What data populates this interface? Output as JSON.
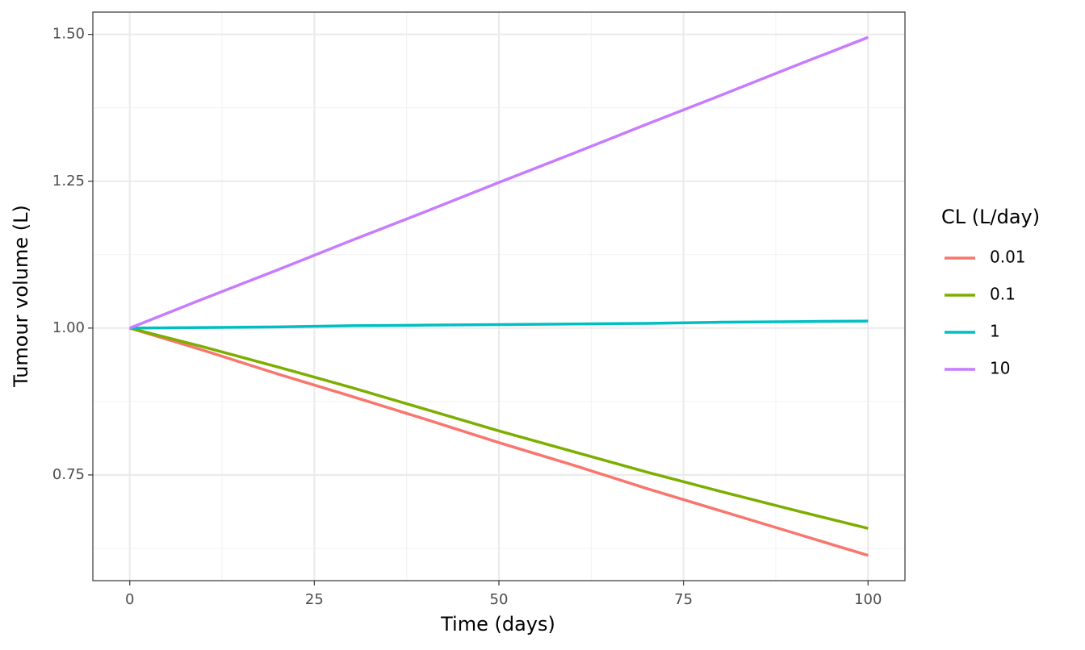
{
  "chart_data": {
    "type": "line",
    "x_label": "Time (days)",
    "y_label": "Tumour volume (L)",
    "legend_title": "CL (L/day)",
    "legend_position": "right",
    "grid": true,
    "x": [
      0,
      10,
      20,
      30,
      40,
      50,
      60,
      70,
      80,
      90,
      100
    ],
    "xlim": [
      -5,
      105
    ],
    "ylim": [
      0.57,
      1.538
    ],
    "xticks": [
      0,
      25,
      50,
      75,
      100
    ],
    "yticks": [
      0.75,
      {
        "value": 1,
        "label": "1.00"
      },
      1.25,
      {
        "value": 1.5,
        "label": "1.50"
      }
    ],
    "xminor": [
      12.5,
      37.5,
      62.5,
      87.5
    ],
    "yminor": [
      0.625,
      0.875,
      1.125,
      1.375
    ],
    "series": [
      {
        "name": "0.01",
        "color": "#F8766D",
        "values": [
          1.0,
          0.962,
          0.922,
          0.884,
          0.845,
          0.805,
          0.767,
          0.727,
          0.689,
          0.651,
          0.613
        ]
      },
      {
        "name": "0.1",
        "color": "#7CAE00",
        "values": [
          1.0,
          0.968,
          0.934,
          0.899,
          0.862,
          0.825,
          0.79,
          0.755,
          0.722,
          0.69,
          0.659
        ]
      },
      {
        "name": "1",
        "color": "#00BFC4",
        "values": [
          1.0,
          1.001,
          1.002,
          1.004,
          1.005,
          1.006,
          1.007,
          1.008,
          1.01,
          1.011,
          1.012
        ]
      },
      {
        "name": "10",
        "color": "#C77CFF",
        "values": [
          1.0,
          1.05,
          1.099,
          1.149,
          1.198,
          1.248,
          1.297,
          1.347,
          1.396,
          1.446,
          1.495
        ]
      }
    ]
  }
}
